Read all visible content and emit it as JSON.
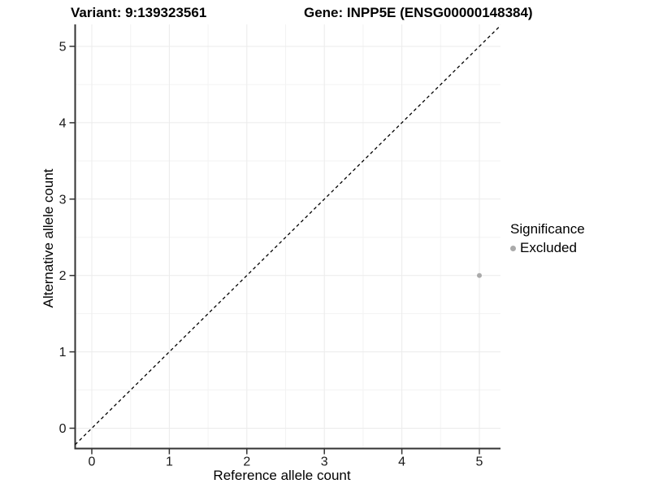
{
  "titles": {
    "variant": "Variant: 9:139323561",
    "gene": "Gene: INPP5E (ENSG00000148384)"
  },
  "chart_data": {
    "type": "scatter",
    "titles": [
      "Variant: 9:139323561",
      "Gene: INPP5E (ENSG00000148384)"
    ],
    "xlabel": "Reference allele count",
    "ylabel": "Alternative allele count",
    "xlim": [
      -0.25,
      5.27
    ],
    "ylim": [
      -0.26,
      5.29
    ],
    "xticks": [
      0,
      1,
      2,
      3,
      4,
      5
    ],
    "yticks": [
      0,
      1,
      2,
      3,
      4,
      5
    ],
    "grid": true,
    "minor_gridlines": true,
    "points": [
      {
        "x": 5,
        "y": 2,
        "series": "Excluded"
      }
    ],
    "reference_line": {
      "type": "abline",
      "slope": 1,
      "intercept": 0,
      "style": "dashed",
      "color": "#000000"
    },
    "legend": {
      "title": "Significance",
      "position": "right",
      "items": [
        {
          "label": "Excluded",
          "color": "#aaaaaa"
        }
      ]
    },
    "colors": {
      "point": "#aaaaaa",
      "major_grid": "#ebebeb",
      "minor_grid": "#f3f3f3",
      "axis_line": "#333333",
      "background": "#ffffff"
    }
  }
}
